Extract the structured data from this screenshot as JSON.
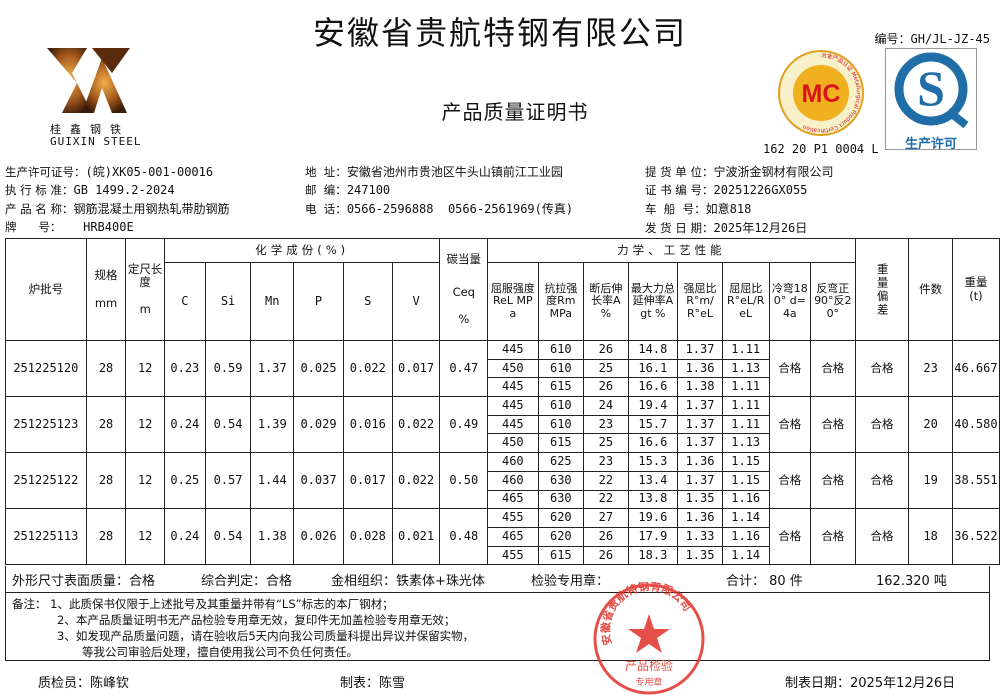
{
  "company": "安徽省贵航特钢有限公司",
  "doc_title": "产品质量证明书",
  "doc_number": "编号：GH/JL-JZ-45",
  "logo": {
    "cn": "桂鑫钢铁",
    "en": "GUIXIN STEEL"
  },
  "badges": {
    "mc_text": "MC",
    "mc_ring": "冶金产品认证 Metallurgical Product Certification",
    "mc_code": "162 20 P1 0004 L",
    "qs_text": "生产许可"
  },
  "info_left": [
    {
      "label": "生产许可证号：",
      "value": "(皖)XK05-001-00016"
    },
    {
      "label": "执 行 标 准：",
      "value": "GB 1499.2-2024"
    },
    {
      "label": "产 品 名 称：",
      "value": "钢筋混凝土用钢热轧带肋钢筋"
    },
    {
      "label": "牌      号：",
      "value": "   HRB400E"
    }
  ],
  "info_mid": [
    {
      "label": "地  址：",
      "value": "安徽省池州市贵池区牛头山镇前江工业园"
    },
    {
      "label": "邮  编：",
      "value": "247100"
    },
    {
      "label": "电  话：",
      "value": "0566-2596888  0566-2561969(传真)"
    }
  ],
  "info_right": [
    {
      "label": "提 货 单 位：",
      "value": "宁波浙金钢材有限公司"
    },
    {
      "label": "证 书 编 号：",
      "value": "20251226GX055"
    },
    {
      "label": "车  船  号：",
      "value": "如意818"
    },
    {
      "label": "发 货 日 期：",
      "value": "2025年12月26日"
    }
  ],
  "table_headers": {
    "batch": "炉批号",
    "spec": "规格",
    "spec_unit": "mm",
    "length": "定尺长度",
    "length_unit": "m",
    "chem": "化学成份(%)",
    "chem_cols": [
      "C",
      "Si",
      "Mn",
      "P",
      "S",
      "V"
    ],
    "ceq": "碳当量",
    "ceq_sub": "Ceq",
    "ceq_unit": "%",
    "mech": "力学、工艺性能",
    "mech_cols": [
      "屈服强度ReL MPa",
      "抗拉强度Rm MPa",
      "断后伸长率A %",
      "最大力总延伸率Agt %",
      "强屈比R°m/R°eL",
      "屈屈比R°eL/ReL",
      "冷弯180° d=4a",
      "反弯正90°反20°"
    ],
    "weight_dev": "重量偏差",
    "pieces": "件数",
    "weight": "重量",
    "weight_unit": "(t)"
  },
  "rows": [
    {
      "batch": "251225120",
      "spec": "28",
      "length": "12",
      "chem": [
        "0.23",
        "0.59",
        "1.37",
        "0.025",
        "0.022",
        "0.017"
      ],
      "ceq": "0.47",
      "mech": [
        [
          "445",
          "610",
          "26",
          "14.8",
          "1.37",
          "1.11"
        ],
        [
          "450",
          "610",
          "25",
          "16.1",
          "1.36",
          "1.13"
        ],
        [
          "445",
          "615",
          "26",
          "16.6",
          "1.38",
          "1.11"
        ]
      ],
      "bend": "合格",
      "rebend": "合格",
      "dev": "合格",
      "pieces": "23",
      "weight": "46.667"
    },
    {
      "batch": "251225123",
      "spec": "28",
      "length": "12",
      "chem": [
        "0.24",
        "0.54",
        "1.39",
        "0.029",
        "0.016",
        "0.022"
      ],
      "ceq": "0.49",
      "mech": [
        [
          "445",
          "610",
          "24",
          "19.4",
          "1.37",
          "1.11"
        ],
        [
          "445",
          "610",
          "23",
          "15.7",
          "1.37",
          "1.11"
        ],
        [
          "450",
          "615",
          "25",
          "16.6",
          "1.37",
          "1.13"
        ]
      ],
      "bend": "合格",
      "rebend": "合格",
      "dev": "合格",
      "pieces": "20",
      "weight": "40.580"
    },
    {
      "batch": "251225122",
      "spec": "28",
      "length": "12",
      "chem": [
        "0.25",
        "0.57",
        "1.44",
        "0.037",
        "0.017",
        "0.022"
      ],
      "ceq": "0.50",
      "mech": [
        [
          "460",
          "625",
          "23",
          "15.3",
          "1.36",
          "1.15"
        ],
        [
          "460",
          "630",
          "22",
          "13.4",
          "1.37",
          "1.15"
        ],
        [
          "465",
          "630",
          "22",
          "13.8",
          "1.35",
          "1.16"
        ]
      ],
      "bend": "合格",
      "rebend": "合格",
      "dev": "合格",
      "pieces": "19",
      "weight": "38.551"
    },
    {
      "batch": "251225113",
      "spec": "28",
      "length": "12",
      "chem": [
        "0.24",
        "0.54",
        "1.38",
        "0.026",
        "0.028",
        "0.021"
      ],
      "ceq": "0.48",
      "mech": [
        [
          "455",
          "620",
          "27",
          "19.6",
          "1.36",
          "1.14"
        ],
        [
          "465",
          "620",
          "26",
          "17.9",
          "1.33",
          "1.16"
        ],
        [
          "455",
          "615",
          "26",
          "18.3",
          "1.35",
          "1.14"
        ]
      ],
      "bend": "合格",
      "rebend": "合格",
      "dev": "合格",
      "pieces": "18",
      "weight": "36.522"
    }
  ],
  "summary": {
    "surface": "外形尺寸表面质量：合格",
    "judge": "综合判定：合格",
    "metallo": "金相组织：铁素体+珠光体",
    "stamp_label": "检验专用章：",
    "total": "合计： 80 件",
    "total_weight": "162.320  吨"
  },
  "notes": [
    "备注： 1、此质保书仅限于上述批号及其重量并带有“LS”标志的本厂钢材；",
    "2、本产品质量证明书无产品检验专用章无效，复印件无加盖检验专用章无效；",
    "3、如发现产品质量问题，请在验收后5天内向我公司质量科提出异议并保留实物，",
    "等我公司审验后处理，擅自使用我公司不负任何责任。"
  ],
  "stamp": {
    "ring": "安徽省贵航特钢有限公司",
    "center": "产品检验",
    "bottom": "专用章",
    "color": "#e0322a"
  },
  "footer": {
    "inspector": "质检员：陈峰钦",
    "maker": "制表：陈雪",
    "date": "制表日期：2025年12月26日"
  }
}
